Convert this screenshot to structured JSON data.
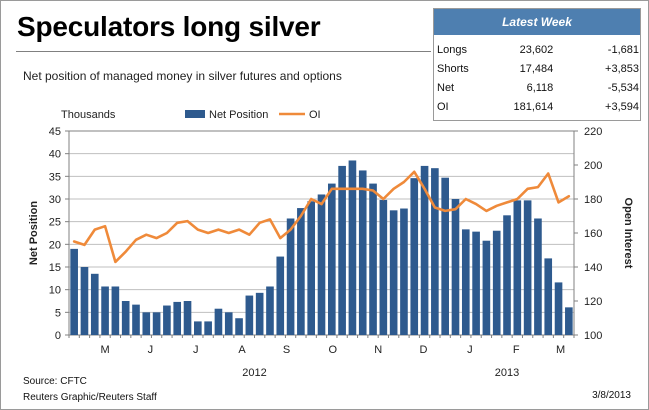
{
  "title": "Speculators long silver",
  "subtitle": "Net position of managed money in silver futures and options",
  "latest_week": {
    "title": "Latest Week",
    "rows": [
      {
        "label": "Longs",
        "value": "23,602",
        "change": "-1,681"
      },
      {
        "label": "Shorts",
        "value": "17,484",
        "change": "+3,853"
      },
      {
        "label": "Net",
        "value": "6,118",
        "change": "-5,534"
      },
      {
        "label": "OI",
        "value": "181,614",
        "change": "+3,594"
      }
    ]
  },
  "footer": {
    "source": "Source: CFTC",
    "credit": "Reuters Graphic/Reuters Staff",
    "date": "3/8/2013"
  },
  "colors": {
    "bar": "#2e5a8e",
    "line": "#ef8a3a",
    "header_bg": "#4e7fb0",
    "grid": "#bfbfbf"
  },
  "chart_data": {
    "type": "bar",
    "units_label": "Thousands",
    "ylabel": "Net Position",
    "y2label": "Open Interest",
    "ylim": [
      0,
      45
    ],
    "y_ticks": [
      0,
      5,
      10,
      15,
      20,
      25,
      30,
      35,
      40,
      45
    ],
    "y2lim": [
      100,
      220
    ],
    "y2_ticks": [
      100,
      120,
      140,
      160,
      180,
      200,
      220
    ],
    "month_labels": [
      "M",
      "J",
      "J",
      "A",
      "S",
      "O",
      "N",
      "D",
      "J",
      "F",
      "M"
    ],
    "month_positions": [
      3.5,
      7.9,
      12.3,
      16.8,
      21.1,
      25.6,
      30.0,
      34.4,
      38.9,
      43.4,
      47.7
    ],
    "year_labels": [
      {
        "text": "2012",
        "position": 18.0
      },
      {
        "text": "2013",
        "position": 42.5
      }
    ],
    "grid": true,
    "legend_position": "top-center",
    "series": [
      {
        "name": "Net Position",
        "kind": "bar",
        "axis": "left",
        "values": [
          19,
          15,
          13.5,
          10.7,
          10.7,
          7.5,
          6.7,
          5,
          5,
          6.5,
          7.3,
          7.5,
          3,
          3,
          5.8,
          5,
          3.7,
          8.7,
          9.3,
          10.7,
          17.3,
          25.7,
          28,
          29.5,
          31,
          33.4,
          37.3,
          38.5,
          36.3,
          33.4,
          29.8,
          27.5,
          27.9,
          34.6,
          37.3,
          36.8,
          34.7,
          30,
          23.3,
          22.8,
          20.8,
          23,
          26.4,
          29.7,
          29.7,
          25.7,
          16.9,
          11.6,
          6.1
        ]
      },
      {
        "name": "OI",
        "kind": "line",
        "axis": "right",
        "values": [
          155,
          153,
          162,
          164,
          143,
          149,
          156,
          159,
          157,
          160,
          166,
          167,
          162,
          160,
          162,
          160,
          162,
          159,
          166,
          168,
          157,
          162,
          170,
          180,
          177,
          186,
          186,
          186,
          186,
          185,
          180,
          186,
          190,
          196,
          186,
          175,
          173,
          174,
          180,
          177,
          173,
          176,
          178,
          180,
          186,
          187,
          195,
          178,
          181.6
        ]
      }
    ]
  }
}
